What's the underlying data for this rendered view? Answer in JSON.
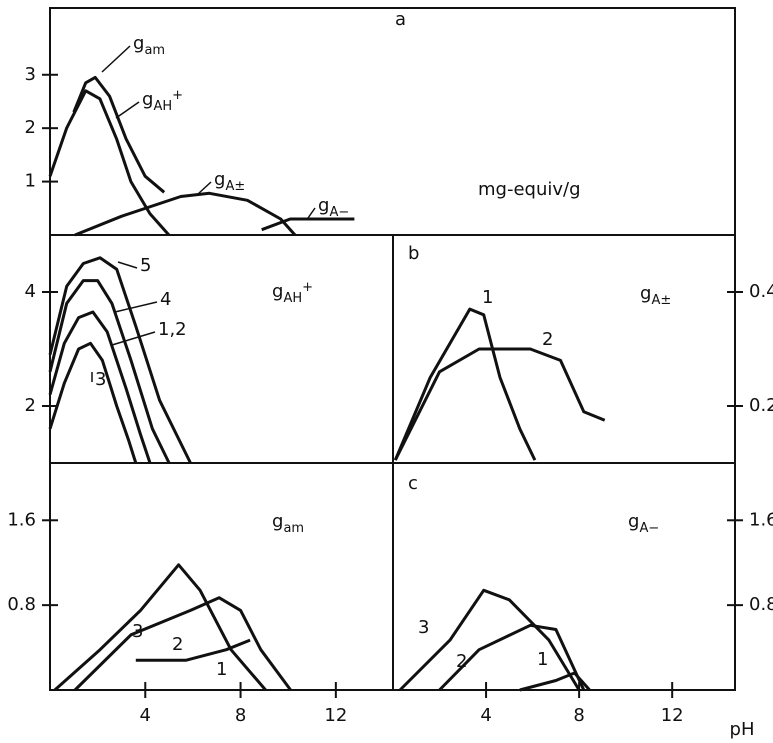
{
  "chart_data": [
    {
      "type": "line",
      "title": "a",
      "annotation": "mg-equiv/g",
      "color": "#111",
      "xlim": [
        0,
        28.8
      ],
      "ylim": [
        0,
        4.25
      ],
      "yticks": [
        1,
        2,
        3
      ],
      "series": [
        {
          "name": "gam",
          "x": [
            1.0,
            1.5,
            1.9,
            2.5,
            3.2,
            4.0,
            4.8
          ],
          "values": [
            2.3,
            2.85,
            2.95,
            2.6,
            1.8,
            1.1,
            0.8
          ]
        },
        {
          "name": "gAH+",
          "x": [
            0,
            0.7,
            1.5,
            2.1,
            2.8,
            3.4,
            4.2,
            5.0
          ],
          "values": [
            1.1,
            2.0,
            2.7,
            2.55,
            1.8,
            1.0,
            0.4,
            0
          ]
        },
        {
          "name": "gA±",
          "x": [
            1.05,
            3.0,
            5.5,
            6.7,
            8.3,
            9.7,
            10.3
          ],
          "values": [
            0,
            0.35,
            0.72,
            0.78,
            0.65,
            0.3,
            0
          ]
        },
        {
          "name": "gA−",
          "x": [
            8.9,
            10.1,
            12.8
          ],
          "values": [
            0.1,
            0.3,
            0.3
          ]
        }
      ]
    },
    {
      "type": "line",
      "label": "gAH+",
      "color": "#111",
      "xlim": [
        0,
        14.4
      ],
      "ylim": [
        1,
        5
      ],
      "yticks": [
        2,
        4
      ],
      "series": [
        {
          "name": "5",
          "x": [
            0,
            0.7,
            1.4,
            2.1,
            2.8,
            3.6,
            4.6,
            5.9
          ],
          "values": [
            2.9,
            4.1,
            4.5,
            4.6,
            4.4,
            3.4,
            2.1,
            1.0
          ]
        },
        {
          "name": "4",
          "x": [
            0,
            0.7,
            1.4,
            2.0,
            2.6,
            3.4,
            4.3,
            5.0
          ],
          "values": [
            2.6,
            3.8,
            4.2,
            4.2,
            3.8,
            2.8,
            1.6,
            1.0
          ]
        },
        {
          "name": "1,2",
          "x": [
            0,
            0.6,
            1.2,
            1.8,
            2.4,
            3.2,
            3.8,
            4.2
          ],
          "values": [
            2.2,
            3.1,
            3.55,
            3.65,
            3.3,
            2.3,
            1.5,
            1.0
          ]
        },
        {
          "name": "3",
          "x": [
            0,
            0.6,
            1.2,
            1.7,
            2.2,
            2.8,
            3.3,
            3.6
          ],
          "values": [
            1.6,
            2.4,
            3.0,
            3.1,
            2.8,
            2.0,
            1.4,
            1.0
          ]
        }
      ]
    },
    {
      "type": "line",
      "title": "b",
      "label": "gA±",
      "color": "#111",
      "y_axis": "right",
      "xlim": [
        0,
        14.7
      ],
      "ylim": [
        0.1,
        0.5
      ],
      "yticks": [
        0.2,
        0.4
      ],
      "series": [
        {
          "name": "1",
          "x": [
            0.1,
            1.6,
            3.3,
            3.9,
            4.6,
            5.45,
            6.1
          ],
          "values": [
            0.105,
            0.25,
            0.37,
            0.36,
            0.25,
            0.16,
            0.105
          ]
        },
        {
          "name": "2",
          "x": [
            0.1,
            2.0,
            3.7,
            5.9,
            7.2,
            8.2,
            9.1
          ],
          "values": [
            0.105,
            0.26,
            0.3,
            0.3,
            0.28,
            0.19,
            0.175
          ]
        }
      ]
    },
    {
      "type": "line",
      "label": "gam",
      "color": "#111",
      "xlim": [
        0,
        14.4
      ],
      "ylim": [
        0,
        2.14
      ],
      "xticks": [
        4,
        8,
        12
      ],
      "yticks": [
        0.8,
        1.6
      ],
      "series": [
        {
          "name": "3",
          "x": [
            0.2,
            2.1,
            3.8,
            5.4,
            6.3,
            7.6,
            9.05
          ],
          "values": [
            0,
            0.38,
            0.75,
            1.18,
            0.94,
            0.38,
            0
          ]
        },
        {
          "name": "2",
          "x": [
            1.05,
            3.4,
            5.9,
            7.1,
            8.0,
            8.85,
            10.1
          ],
          "values": [
            0,
            0.52,
            0.75,
            0.87,
            0.75,
            0.38,
            0
          ]
        },
        {
          "name": "1",
          "x": [
            3.6,
            5.7,
            7.4,
            8.4
          ],
          "values": [
            0.28,
            0.28,
            0.38,
            0.47
          ]
        }
      ]
    },
    {
      "type": "line",
      "title": "c",
      "label": "gA−",
      "xlabel": "pH",
      "color": "#111",
      "y_axis": "right",
      "xlim": [
        0,
        14.7
      ],
      "ylim": [
        0,
        2.14
      ],
      "xticks": [
        4,
        8,
        12
      ],
      "yticks": [
        0.8,
        1.6
      ],
      "series": [
        {
          "name": "3",
          "x": [
            0.3,
            2.45,
            3.9,
            5.0,
            6.7,
            8.0
          ],
          "values": [
            0,
            0.47,
            0.94,
            0.85,
            0.47,
            0
          ]
        },
        {
          "name": "2",
          "x": [
            2.0,
            3.7,
            5.9,
            7.0,
            8.2
          ],
          "values": [
            0,
            0.38,
            0.61,
            0.57,
            0
          ]
        },
        {
          "name": "1",
          "x": [
            5.45,
            7.0,
            7.8,
            8.45
          ],
          "values": [
            0,
            0.09,
            0.16,
            0
          ]
        }
      ]
    }
  ]
}
